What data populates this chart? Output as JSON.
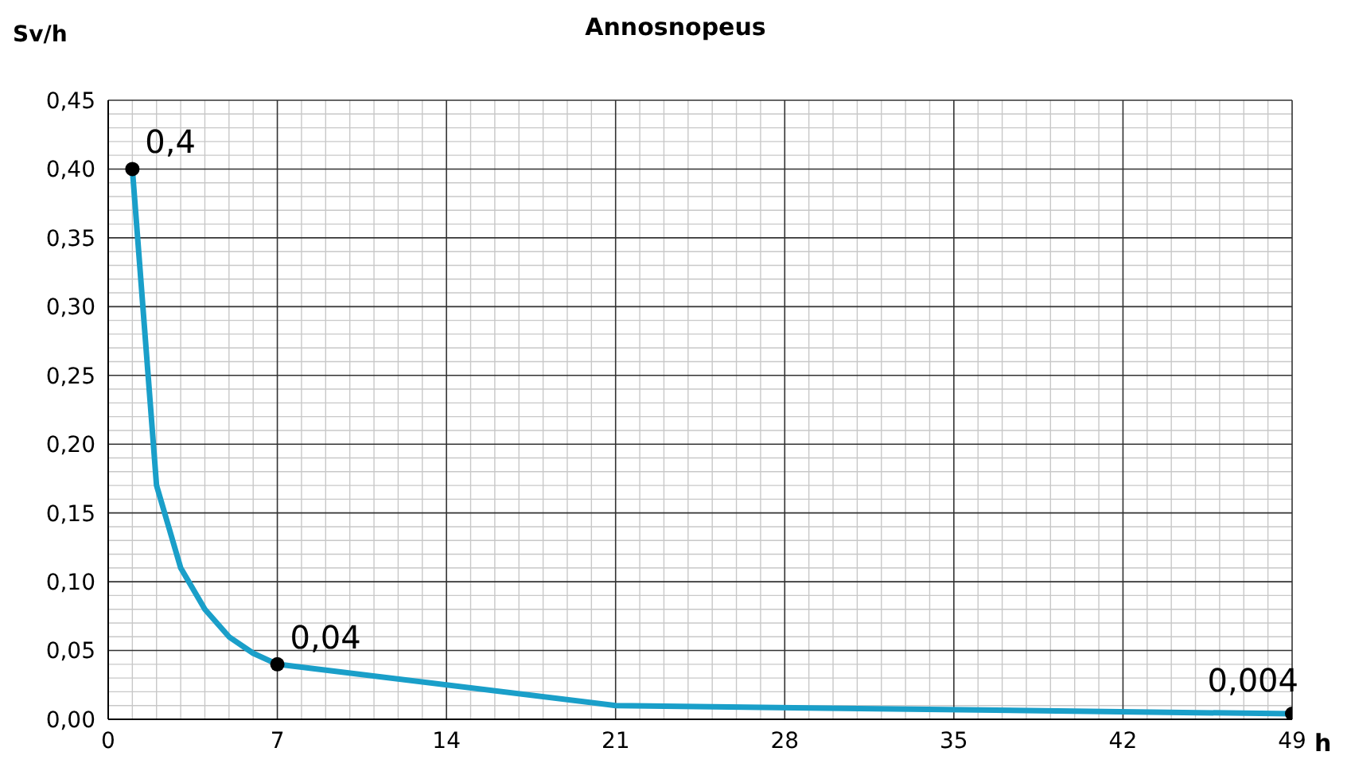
{
  "chart_data": {
    "type": "line",
    "title": "Annosnopeus",
    "xlabel": "h",
    "ylabel": "Sv/h",
    "xlim": [
      0,
      49
    ],
    "xticks": [
      0,
      7,
      14,
      21,
      28,
      35,
      42,
      49
    ],
    "ylim": [
      0,
      0.45
    ],
    "yticks": [
      {
        "value": 0,
        "label": "0,00"
      },
      {
        "value": 0.05,
        "label": "0,05"
      },
      {
        "value": 0.1,
        "label": "0,10"
      },
      {
        "value": 0.15,
        "label": "0,15"
      },
      {
        "value": 0.2,
        "label": "0,20"
      },
      {
        "value": 0.25,
        "label": "0,25"
      },
      {
        "value": 0.3,
        "label": "0,30"
      },
      {
        "value": 0.35,
        "label": "0,35"
      },
      {
        "value": 0.4,
        "label": "0,40"
      },
      {
        "value": 0.45,
        "label": "0,45"
      }
    ],
    "grid": true,
    "legend": false,
    "series": [
      {
        "color": "#1a9fc9",
        "marker": "none",
        "x": [
          1,
          2,
          3,
          4,
          5,
          6,
          7,
          21,
          49
        ],
        "values": [
          0.4,
          0.17,
          0.11,
          0.08,
          0.06,
          0.048,
          0.04,
          0.01,
          0.004
        ]
      },
      {
        "type": "scatter",
        "color": "#000000",
        "marker": "circle",
        "x": [
          1,
          7,
          49
        ],
        "values": [
          0.4,
          0.04,
          0.004
        ],
        "value_labels": [
          "0,4",
          "0,04",
          "0,004"
        ]
      }
    ]
  }
}
